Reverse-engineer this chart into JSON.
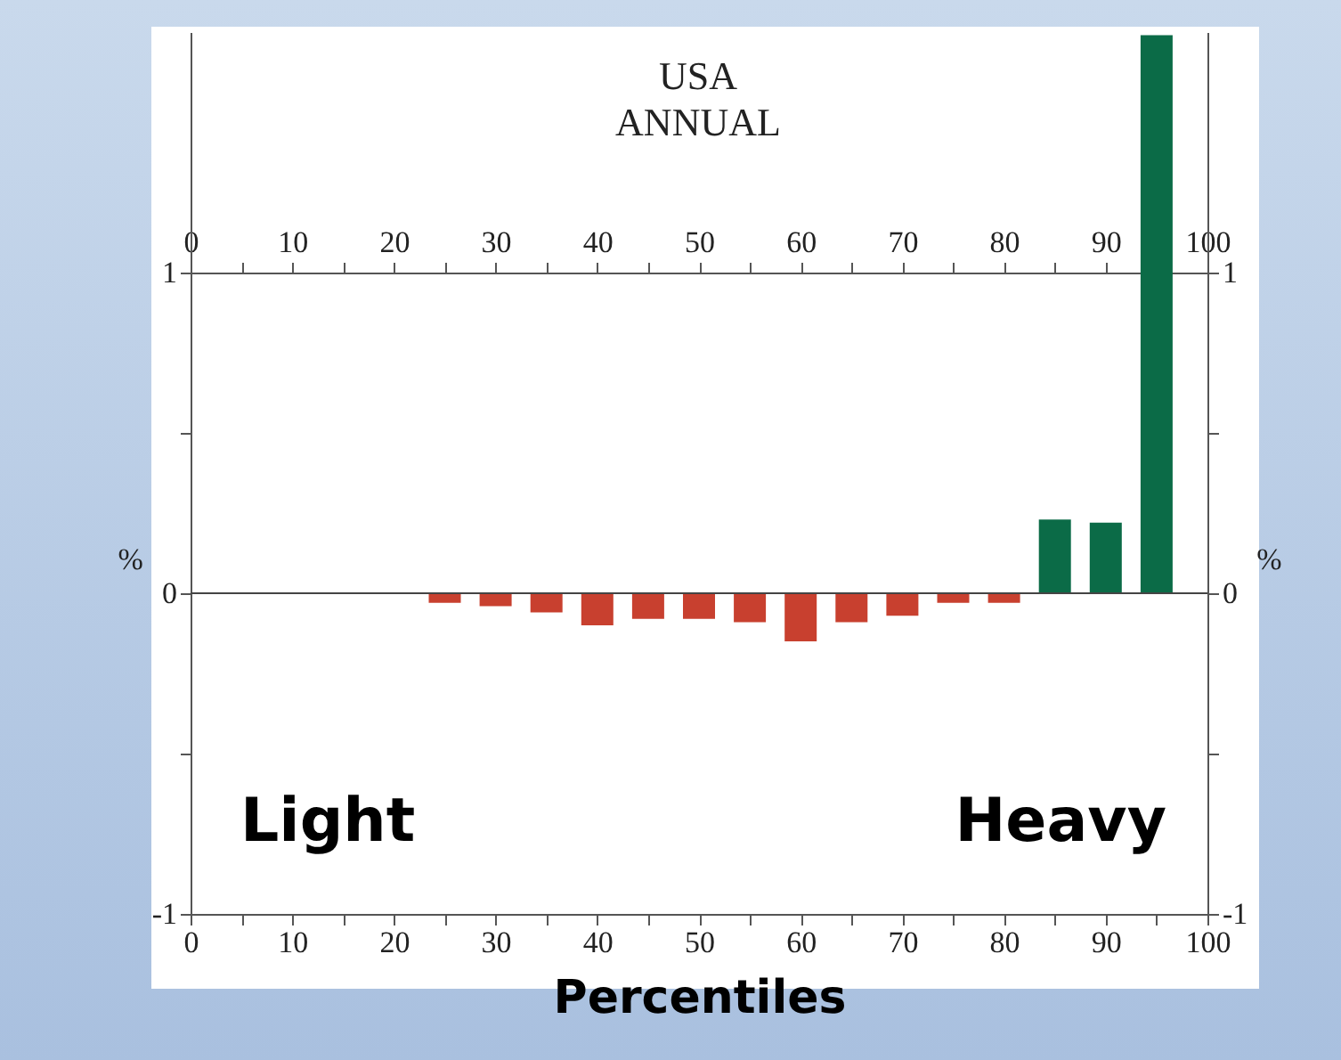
{
  "chart_data": {
    "type": "bar",
    "title": "USA",
    "subtitle": "ANNUAL",
    "xlabel": "Percentiles",
    "ylabel": "%",
    "y2label": "%",
    "x": [
      25,
      30,
      35,
      40,
      45,
      50,
      55,
      60,
      65,
      70,
      75,
      80,
      85,
      90,
      95
    ],
    "values": [
      -0.03,
      -0.04,
      -0.06,
      -0.1,
      -0.08,
      -0.08,
      -0.09,
      -0.15,
      -0.09,
      -0.07,
      -0.03,
      -0.03,
      0.23,
      0.22,
      1.74
    ],
    "colors": [
      "#c8402f",
      "#c8402f",
      "#c8402f",
      "#c8402f",
      "#c8402f",
      "#c8402f",
      "#c8402f",
      "#c8402f",
      "#c8402f",
      "#c8402f",
      "#c8402f",
      "#c8402f",
      "#0b6b47",
      "#0b6b47",
      "#0b6b47"
    ],
    "xlim": [
      0,
      100
    ],
    "xticks": [
      0,
      {
        "value": 5,
        "label": null
      },
      10,
      {
        "value": 15,
        "label": null
      },
      20,
      {
        "value": 25,
        "label": null
      },
      30,
      {
        "value": 35,
        "label": null
      },
      40,
      {
        "value": 45,
        "label": null
      },
      50,
      {
        "value": 55,
        "label": null
      },
      60,
      {
        "value": 65,
        "label": null
      },
      70,
      {
        "value": 75,
        "label": null
      },
      80,
      {
        "value": 85,
        "label": null
      },
      90,
      {
        "value": 95,
        "label": null
      },
      100
    ],
    "x2lim": [
      0,
      100
    ],
    "x2ticks": [
      0,
      {
        "value": 5,
        "label": null
      },
      10,
      {
        "value": 15,
        "label": null
      },
      20,
      {
        "value": 25,
        "label": null
      },
      30,
      {
        "value": 35,
        "label": null
      },
      40,
      {
        "value": 45,
        "label": null
      },
      50,
      {
        "value": 55,
        "label": null
      },
      60,
      {
        "value": 65,
        "label": null
      },
      70,
      {
        "value": 75,
        "label": null
      },
      80,
      {
        "value": 85,
        "label": null
      },
      90,
      {
        "value": 95,
        "label": null
      },
      100
    ],
    "ylim": [
      -1,
      1.75
    ],
    "yticks": [
      -1,
      {
        "value": -0.5,
        "label": null
      },
      0,
      {
        "value": 0.5,
        "label": null
      },
      1
    ],
    "y2lim": [
      -1,
      1.75
    ],
    "y2ticks": [
      -1,
      {
        "value": -0.5,
        "label": null
      },
      0,
      {
        "value": 0.5,
        "label": null
      },
      1
    ],
    "ref_lines": [
      {
        "axis": "y",
        "value": 0
      }
    ],
    "annotations": [
      "Light",
      "Heavy"
    ]
  }
}
